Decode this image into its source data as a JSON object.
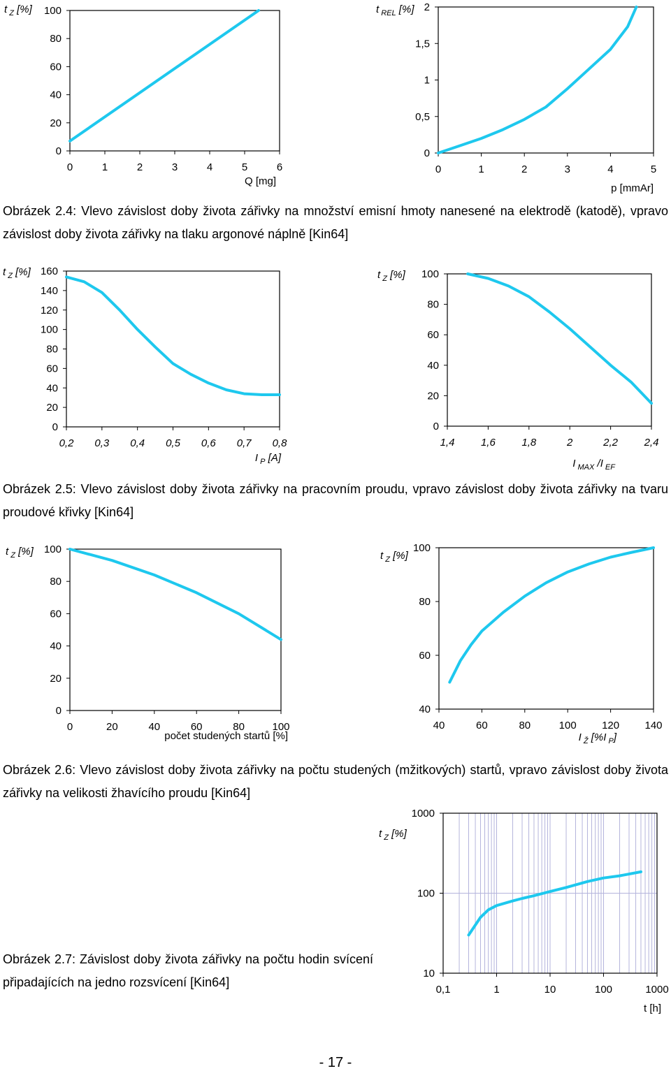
{
  "page_number": "- 17 -",
  "captions": {
    "fig_2_4": "Obrázek 2.4: Vlevo závislost doby života zářivky na množství emisní hmoty nanesené na elektrodě (katodě), vpravo závislost doby života zářivky na tlaku argonové náplně [Kin64]",
    "fig_2_5": "Obrázek 2.5: Vlevo závislost doby života zářivky na pracovním proudu, vpravo závislost doby života zářivky na tvaru proudové křivky [Kin64]",
    "fig_2_6": "Obrázek 2.6: Vlevo závislost doby života zářivky na počtu studených (mžitkových) startů, vpravo závislost doby života zářivky na velikosti žhavícího proudu [Kin64]",
    "fig_2_7": "Obrázek 2.7: Závislost doby života zářivky na počtu hodin svícení připadajících na jedno rozsvícení [Kin64]"
  },
  "style": {
    "line_color": "#1ec8ee",
    "axis_color": "#000000",
    "grid_color": "#b4b4dc"
  },
  "chart_data": [
    {
      "id": "c1",
      "type": "line",
      "ylabel_base": "t",
      "ylabel_sub": "Z",
      "ylabel_unit": "[%]",
      "xlabel": "Q [mg]",
      "x_ticks": [
        "0",
        "1",
        "2",
        "3",
        "4",
        "5",
        "6"
      ],
      "y_ticks": [
        "0",
        "20",
        "40",
        "60",
        "80",
        "100"
      ],
      "xlim": [
        0,
        6
      ],
      "ylim": [
        0,
        100
      ],
      "series": [
        {
          "name": "tz",
          "x": [
            0,
            5.4
          ],
          "y": [
            7,
            100
          ]
        }
      ]
    },
    {
      "id": "c2",
      "type": "line",
      "ylabel_base": "t",
      "ylabel_sub": "REL",
      "ylabel_unit": "[%]",
      "xlabel": "p [mmAr]",
      "x_ticks": [
        "0",
        "1",
        "2",
        "3",
        "4",
        "5"
      ],
      "y_ticks": [
        "0",
        "0,5",
        "1",
        "1,5",
        "2"
      ],
      "xlim": [
        0,
        5
      ],
      "ylim": [
        0,
        2
      ],
      "series": [
        {
          "name": "trel",
          "x": [
            0,
            0.5,
            1,
            1.5,
            2,
            2.5,
            3,
            3.5,
            4,
            4.4,
            4.6
          ],
          "y": [
            0,
            0.1,
            0.2,
            0.32,
            0.46,
            0.63,
            0.88,
            1.15,
            1.42,
            1.73,
            2.0
          ]
        }
      ]
    },
    {
      "id": "c3",
      "type": "line",
      "ylabel_base": "t",
      "ylabel_sub": "Z",
      "ylabel_unit": "[%]",
      "xlabel_base": "I",
      "xlabel_sub": "P",
      "xlabel_unit": "[A]",
      "x_ticks": [
        "0,2",
        "0,3",
        "0,4",
        "0,5",
        "0,6",
        "0,7",
        "0,8"
      ],
      "y_ticks": [
        "0",
        "20",
        "40",
        "60",
        "80",
        "100",
        "120",
        "140",
        "160"
      ],
      "xlim": [
        0.2,
        0.8
      ],
      "ylim": [
        0,
        160
      ],
      "series": [
        {
          "name": "tz",
          "x": [
            0.2,
            0.25,
            0.3,
            0.35,
            0.4,
            0.45,
            0.5,
            0.55,
            0.6,
            0.65,
            0.7,
            0.75,
            0.8
          ],
          "y": [
            154,
            149,
            138,
            120,
            100,
            82,
            65,
            54,
            45,
            38,
            34,
            33,
            33
          ]
        }
      ]
    },
    {
      "id": "c4",
      "type": "line",
      "ylabel_base": "t",
      "ylabel_sub": "Z",
      "ylabel_unit": "[%]",
      "xlabel_base": "I",
      "xlabel_sub": "MAX",
      "xlabel_mid": "/I",
      "xlabel_sub2": "EF",
      "x_ticks": [
        "1,4",
        "1,6",
        "1,8",
        "2",
        "2,2",
        "2,4"
      ],
      "y_ticks": [
        "0",
        "20",
        "40",
        "60",
        "80",
        "100"
      ],
      "xlim": [
        1.4,
        2.4
      ],
      "ylim": [
        0,
        100
      ],
      "series": [
        {
          "name": "tz",
          "x": [
            1.5,
            1.6,
            1.7,
            1.8,
            1.9,
            2.0,
            2.1,
            2.2,
            2.3,
            2.4
          ],
          "y": [
            100,
            97,
            92,
            85,
            75,
            64,
            52,
            40,
            29,
            15
          ]
        }
      ]
    },
    {
      "id": "c5",
      "type": "line",
      "ylabel_base": "t",
      "ylabel_sub": "Z",
      "ylabel_unit": "[%]",
      "xlabel": "počet studených startů [%]",
      "x_ticks": [
        "0",
        "20",
        "40",
        "60",
        "80",
        "100"
      ],
      "y_ticks": [
        "0",
        "20",
        "40",
        "60",
        "80",
        "100"
      ],
      "xlim": [
        0,
        100
      ],
      "ylim": [
        0,
        100
      ],
      "series": [
        {
          "name": "tz",
          "x": [
            0,
            20,
            40,
            60,
            80,
            100
          ],
          "y": [
            100,
            93,
            84,
            73,
            60,
            44
          ]
        }
      ]
    },
    {
      "id": "c6",
      "type": "line",
      "ylabel_base": "t",
      "ylabel_sub": "Z",
      "ylabel_unit": "[%]",
      "xlabel_base": "I",
      "xlabel_sub": "Ž",
      "xlabel_mid": "[%I",
      "xlabel_sub2": "P",
      "xlabel_end": "]",
      "x_ticks": [
        "40",
        "60",
        "80",
        "100",
        "120",
        "140"
      ],
      "y_ticks": [
        "40",
        "60",
        "80",
        "100"
      ],
      "xlim": [
        40,
        140
      ],
      "ylim": [
        40,
        100
      ],
      "series": [
        {
          "name": "tz",
          "x": [
            45,
            50,
            55,
            60,
            70,
            80,
            90,
            100,
            110,
            120,
            130,
            140
          ],
          "y": [
            50,
            58,
            64,
            69,
            76,
            82,
            87,
            91,
            94,
            96.5,
            98.3,
            100
          ]
        }
      ]
    },
    {
      "id": "c7",
      "type": "line",
      "scale": "log-log",
      "ylabel_base": "t",
      "ylabel_sub": "Z",
      "ylabel_unit": "[%]",
      "xlabel": "t [h]",
      "x_ticks": [
        "0,1",
        "1",
        "10",
        "100",
        "1000"
      ],
      "y_ticks": [
        "10",
        "100",
        "1000"
      ],
      "xlim": [
        0.1,
        1000
      ],
      "ylim": [
        10,
        1000
      ],
      "series": [
        {
          "name": "tz",
          "x": [
            0.3,
            0.5,
            0.7,
            1,
            2,
            3,
            5,
            10,
            20,
            50,
            100,
            200,
            500
          ],
          "y": [
            30,
            50,
            62,
            70,
            80,
            86,
            93,
            105,
            118,
            140,
            155,
            165,
            185
          ]
        }
      ]
    }
  ]
}
